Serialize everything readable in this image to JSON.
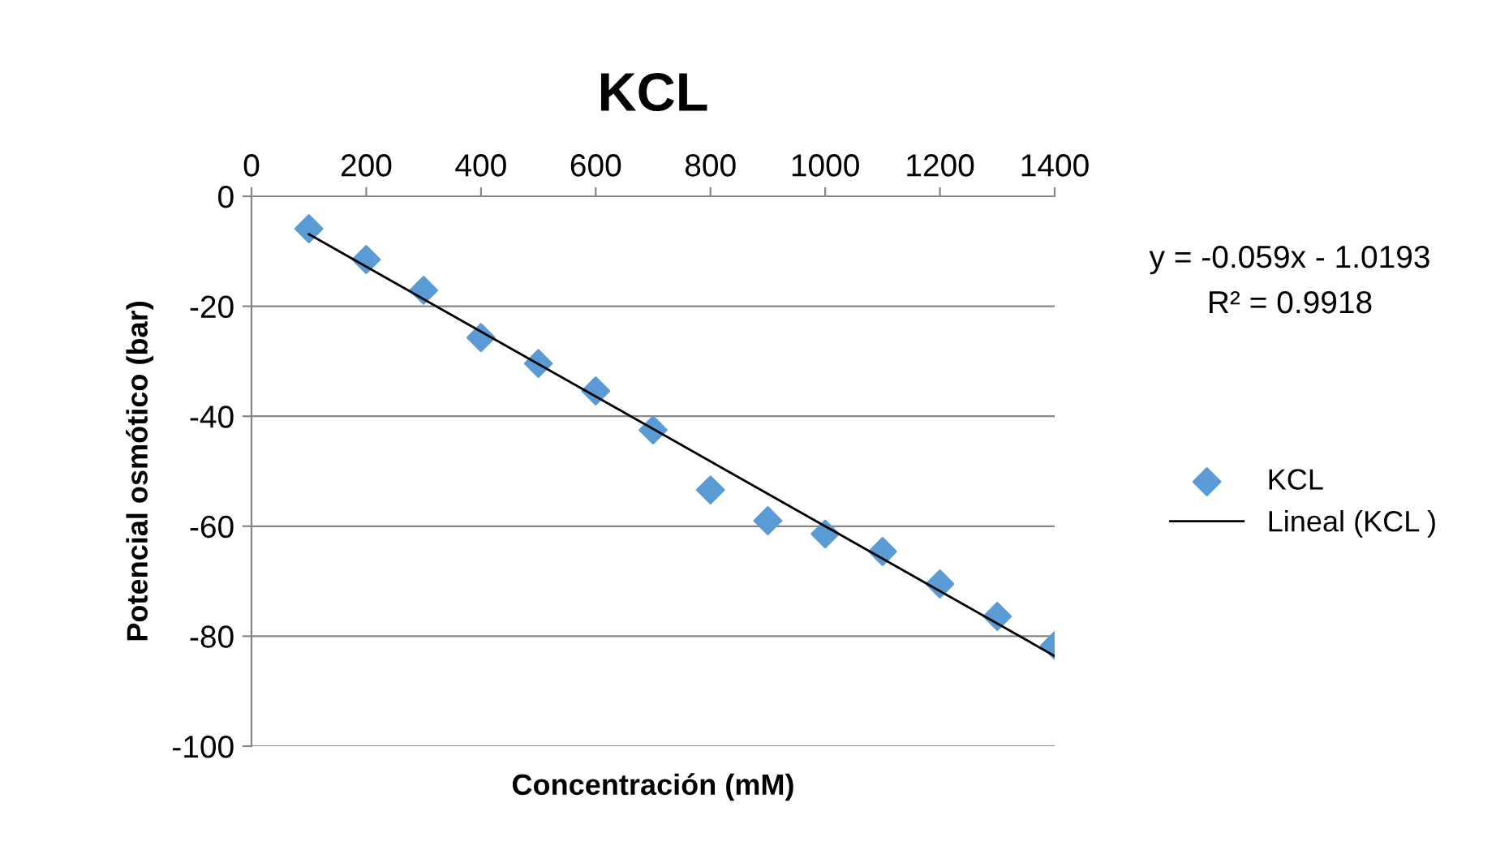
{
  "chart_data": {
    "type": "scatter",
    "title": "KCL",
    "xlabel": "Concentración (mM)",
    "ylabel": "Potencial osmótico (bar)",
    "series": [
      {
        "name": "KCL",
        "color": "#5b9bd5",
        "marker": "diamond",
        "x": [
          100,
          200,
          300,
          400,
          500,
          600,
          700,
          800,
          900,
          1000,
          1100,
          1200,
          1300,
          1400
        ],
        "values": [
          -5.9,
          -11.5,
          -17.1,
          -25.7,
          -30.4,
          -35.4,
          -42.5,
          -53.4,
          -59,
          -61.4,
          -64.6,
          -70.5,
          -76.4,
          -81.7
        ]
      },
      {
        "name": "Lineal (KCL )",
        "type": "line",
        "color": "#000000",
        "x": [
          100,
          1400
        ],
        "values": [
          -6.9,
          -83.6
        ]
      }
    ],
    "xlim": [
      0,
      1400
    ],
    "xticks": [
      0,
      200,
      400,
      600,
      800,
      1000,
      1200,
      1400
    ],
    "ylim": [
      -100,
      0
    ],
    "yticks": [
      -100,
      -80,
      -60,
      -40,
      -20,
      0
    ],
    "grid": "y",
    "legend": "right",
    "annotations": [
      "y = -0.059x - 1.0193",
      "R² = 0.9918"
    ]
  }
}
